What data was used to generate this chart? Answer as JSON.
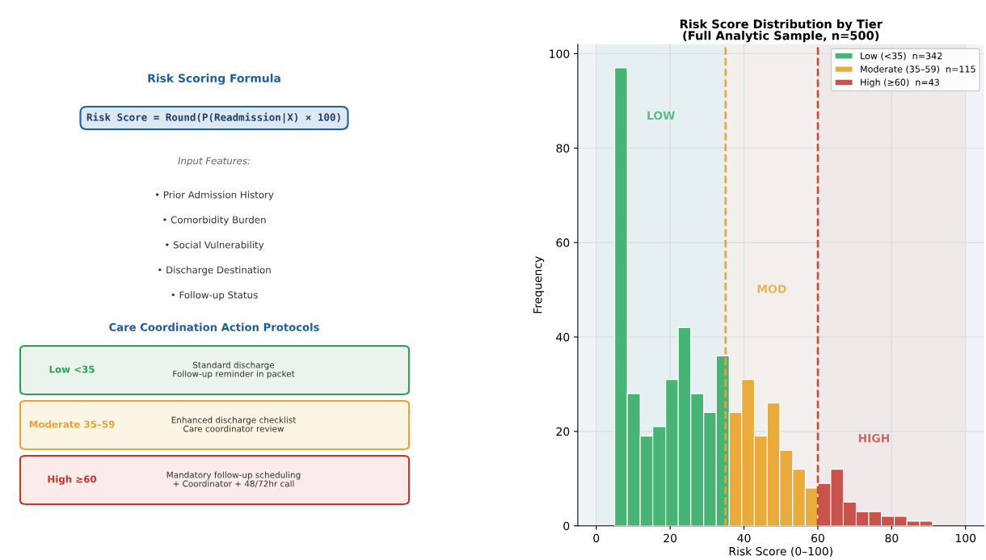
{
  "chart_data": [
    {
      "type": "other",
      "title": "Risk Scoring Formula",
      "subtitle": "Risk Score = Round(P(Readmission|X) × 100)",
      "annotations": [
        "Input Features:",
        "• Prior Admission History",
        "• Comorbidity Burden",
        "• Social Vulnerability",
        "• Discharge Destination",
        "• Follow-up Status",
        "Care Coordination Action Protocols",
        "Low <35",
        "Standard discharge\nFollow-up reminder in packet",
        "Moderate 35–59",
        "Enhanced discharge checklist\nCare coordinator review",
        "High ≥60",
        "Mandatory follow-up scheduling\n+ Coordinator + 48/72hr call"
      ],
      "colors": [
        "#2e9e5b",
        "#e8a33a",
        "#c0392b"
      ]
    },
    {
      "type": "histogram",
      "title": "Risk Score Distribution by Tier\n(Full Analytic Sample, n=500)",
      "xlabel": "Risk Score (0–100)",
      "ylabel": "Frequency",
      "bins": [
        5,
        8.4,
        11.9,
        15.3,
        18.8,
        22.2,
        25.6,
        29.1,
        32.5,
        36,
        39.4,
        42.8,
        46.3,
        49.7,
        53.2,
        56.6,
        60,
        63.5,
        66.9,
        70.4,
        73.8,
        77.2,
        80.7,
        84.1,
        87.6,
        91
      ],
      "series": [
        {
          "name": "Low (<35)  n=342",
          "color": "#47b475",
          "values": [
            97,
            28,
            19,
            21,
            31,
            42,
            28,
            24,
            36,
            null,
            null,
            null,
            null,
            null,
            null,
            null,
            null,
            null,
            null,
            null,
            null,
            null,
            null,
            null,
            null
          ]
        },
        {
          "name": "Moderate (35–59)  n=115",
          "color": "#e8ab3c",
          "values": [
            null,
            null,
            null,
            null,
            null,
            null,
            null,
            null,
            null,
            24,
            31,
            19,
            26,
            16,
            12,
            8,
            null,
            null,
            null,
            null,
            null,
            null,
            null,
            null,
            null
          ]
        },
        {
          "name": "High (≥60)  n=43",
          "color": "#c9524a",
          "values": [
            null,
            null,
            null,
            null,
            null,
            null,
            null,
            null,
            null,
            null,
            null,
            null,
            null,
            null,
            null,
            null,
            9,
            12,
            5,
            3,
            3,
            2,
            2,
            1,
            1
          ]
        }
      ],
      "xlim": [
        -5,
        105
      ],
      "ylim": [
        0,
        102
      ],
      "xticks": [
        0,
        20,
        40,
        60,
        80,
        100
      ],
      "yticks": [
        0,
        20,
        40,
        60,
        80,
        100
      ],
      "ref_lines": [
        {
          "axis": "x",
          "value": 35,
          "label": null,
          "color": "#e8a33a",
          "line_style": "dashed"
        },
        {
          "axis": "x",
          "value": 60,
          "label": null,
          "color": "#d0463b",
          "line_style": "dashed"
        }
      ],
      "bands": [
        {
          "axis": "x",
          "from": 0,
          "to": 35,
          "label": null,
          "color": "#e6eff1"
        },
        {
          "axis": "x",
          "from": 35,
          "to": 60,
          "label": null,
          "color": "#f3efec"
        },
        {
          "axis": "x",
          "from": 60,
          "to": 100,
          "label": null,
          "color": "#efe9ea"
        }
      ],
      "annotations": [
        "LOW",
        "MOD",
        "HIGH"
      ],
      "grid": true,
      "legend": "top right"
    }
  ]
}
